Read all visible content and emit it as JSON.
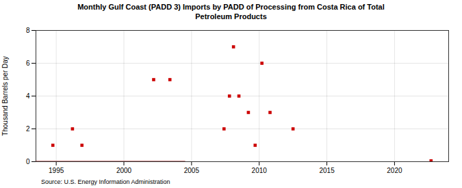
{
  "chart_data": {
    "type": "scatter",
    "title": "Monthly Gulf Coast (PADD 3) Imports by PADD of Processing from Costa Rica of Total\nPetroleum Products",
    "ylabel": "Thousand Barrels per Day",
    "caption": "Source: U.S. Energy Information Administration",
    "series": [
      {
        "type": "scatter",
        "color": "#cc0000",
        "marker": "square",
        "x": [
          1994.75,
          1996.2,
          1996.9,
          2002.2,
          2003.4,
          2007.4,
          2007.8,
          2008.1,
          2008.5,
          2009.2,
          2009.7,
          2010.2,
          2010.8,
          2012.5,
          2022.7
        ],
        "values": [
          1.0,
          2.0,
          1.0,
          5.0,
          5.0,
          2.0,
          4.0,
          7.0,
          4.0,
          3.0,
          1.0,
          6.0,
          3.0,
          2.0,
          0.05
        ]
      },
      {
        "type": "line",
        "color": "#8b0000",
        "line_style": "solid",
        "x": [
          1993.5,
          2004.5
        ],
        "values": [
          0,
          0
        ]
      }
    ],
    "xlim": [
      1993.5,
      2024
    ],
    "ylim": [
      0,
      8
    ],
    "xticks": [
      1995,
      2000,
      2005,
      2010,
      2015,
      2020
    ],
    "yticks": [
      0,
      2,
      4,
      6,
      8
    ],
    "grid": true
  }
}
